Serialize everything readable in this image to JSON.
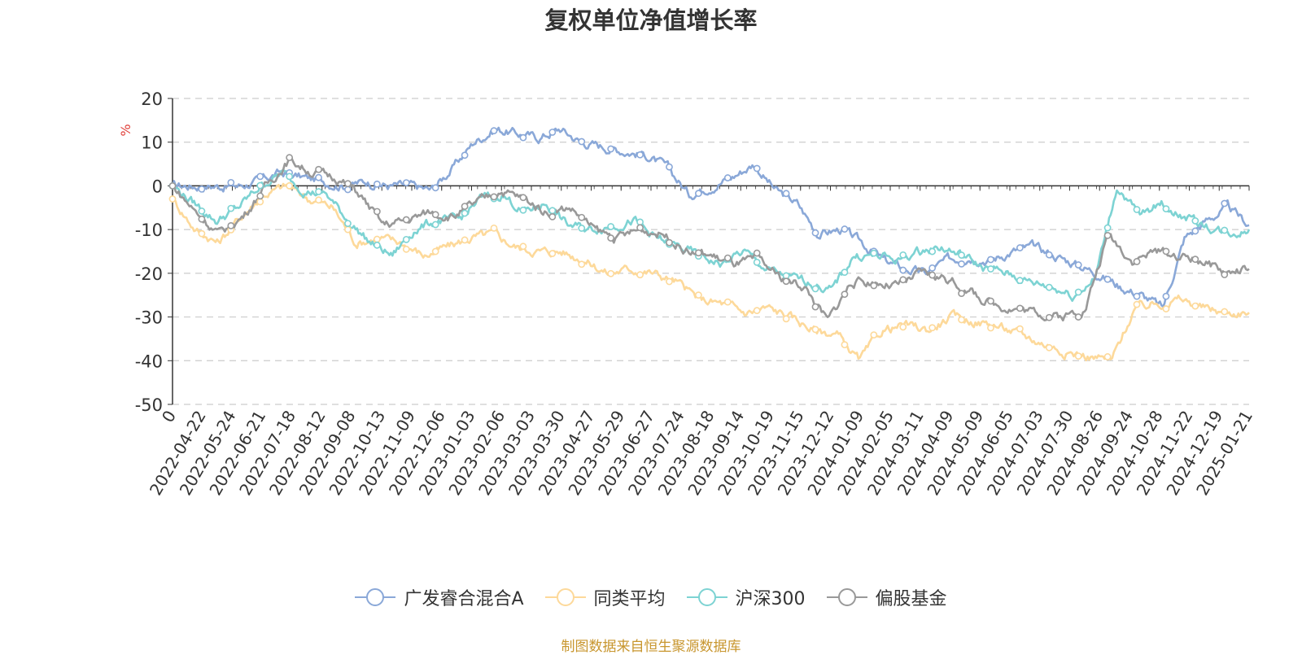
{
  "chart_data": {
    "type": "line",
    "title": "复权单位净值增长率",
    "ylabel": "%",
    "ylim": [
      -50,
      20
    ],
    "yticks": [
      20,
      10,
      0,
      -10,
      -20,
      -30,
      -40,
      -50
    ],
    "grid": true,
    "legend_position": "bottom",
    "x_tick_labels": [
      "0",
      "2022-04-22",
      "2022-05-24",
      "2022-06-21",
      "2022-07-18",
      "2022-08-12",
      "2022-09-08",
      "2022-10-13",
      "2022-11-09",
      "2022-12-06",
      "2023-01-03",
      "2023-02-06",
      "2023-03-03",
      "2023-03-30",
      "2023-04-27",
      "2023-05-29",
      "2023-06-27",
      "2023-07-24",
      "2023-08-18",
      "2023-09-14",
      "2023-10-19",
      "2023-11-15",
      "2023-12-12",
      "2024-01-09",
      "2024-02-05",
      "2024-03-11",
      "2024-04-09",
      "2024-05-09",
      "2024-06-05",
      "2024-07-03",
      "2024-07-30",
      "2024-08-26",
      "2024-09-24",
      "2024-10-28",
      "2024-11-22",
      "2024-12-19",
      "2025-01-21"
    ],
    "series": [
      {
        "name": "广发睿合混合A",
        "color": "#8aa8d8",
        "values": [
          0,
          0,
          0,
          0,
          1,
          3,
          2,
          1,
          0,
          1,
          0,
          0,
          -1,
          4,
          10,
          13,
          12,
          11,
          13,
          10,
          9,
          8,
          7,
          4,
          -2,
          0,
          2,
          5,
          -1,
          -4,
          -11,
          -10,
          -13,
          -17,
          -19,
          -20,
          -17,
          -16,
          -17,
          -15,
          -14,
          -16,
          -18,
          -20,
          -23,
          -25,
          -28,
          -12,
          -8,
          -5,
          -9
        ]
      },
      {
        "name": "同类平均",
        "color": "#fdd99a",
        "values": [
          -3,
          -10,
          -13,
          -7,
          -2,
          0,
          -3,
          -5,
          -13,
          -12,
          -13,
          -16,
          -14,
          -12,
          -11,
          -14,
          -15,
          -15,
          -17,
          -20,
          -19,
          -20,
          -22,
          -26,
          -27,
          -29,
          -28,
          -30,
          -33,
          -34,
          -40,
          -33,
          -32,
          -33,
          -30,
          -31,
          -32,
          -34,
          -36,
          -38,
          -39,
          -40,
          -28,
          -27,
          -26,
          -28,
          -29,
          -29
        ]
      },
      {
        "name": "沪深300",
        "color": "#7dd3d3",
        "values": [
          0,
          -4,
          -8,
          -5,
          0,
          3,
          -1,
          -2,
          -8,
          -13,
          -16,
          -10,
          -8,
          -8,
          -3,
          -2,
          -6,
          -4,
          -9,
          -10,
          -9,
          -8,
          -12,
          -14,
          -16,
          -18,
          -15,
          -19,
          -21,
          -22,
          -24,
          -16,
          -16,
          -17,
          -15,
          -14,
          -16,
          -19,
          -20,
          -22,
          -23,
          -25,
          -21,
          0,
          -7,
          -4,
          -7,
          -9,
          -11,
          -10
        ]
      },
      {
        "name": "偏股基金",
        "color": "#999999",
        "values": [
          0,
          -6,
          -11,
          -7,
          0,
          6,
          3,
          2,
          -2,
          -9,
          -8,
          -6,
          -7,
          -4,
          -1,
          -3,
          -6,
          -5,
          -10,
          -12,
          -10,
          -11,
          -15,
          -16,
          -18,
          -17,
          -21,
          -23,
          -31,
          -22,
          -22,
          -23,
          -20,
          -21,
          -24,
          -27,
          -28,
          -29,
          -30,
          -28,
          -11,
          -17,
          -15,
          -16,
          -17,
          -20,
          -19
        ]
      }
    ]
  },
  "legend": {
    "items": [
      {
        "label": "广发睿合混合A",
        "color": "#8aa8d8"
      },
      {
        "label": "同类平均",
        "color": "#fdd99a"
      },
      {
        "label": "沪深300",
        "color": "#7dd3d3"
      },
      {
        "label": "偏股基金",
        "color": "#999999"
      }
    ]
  },
  "source_note": "制图数据来自恒生聚源数据库"
}
